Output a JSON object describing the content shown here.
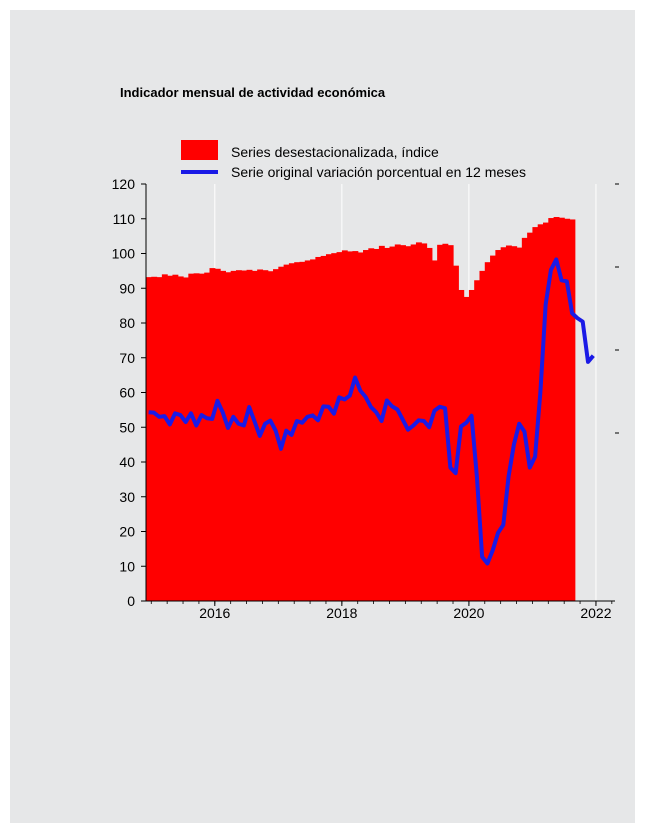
{
  "chart_data": {
    "type": "bar",
    "title": "Indicador mensual de actividad económica",
    "legend": {
      "position": "top",
      "entries": [
        {
          "name": "Series desestacionalizada, índice",
          "color": "#ff0000",
          "kind": "bar"
        },
        {
          "name": "Serie original variación porcentual en 12 meses",
          "color": "#1a1ae6",
          "kind": "line"
        }
      ]
    },
    "x_ticks": [
      "2016",
      "2018",
      "2020",
      "2022"
    ],
    "x_tick_values": [
      2016,
      2018,
      2020,
      2022
    ],
    "xlim": [
      2014.917,
      2022.3
    ],
    "ylim": [
      0,
      120
    ],
    "y_ticks": [
      "0",
      "10",
      "20",
      "30",
      "40",
      "50",
      "60",
      "70",
      "80",
      "90",
      "100",
      "110",
      "120"
    ],
    "y_tick_values": [
      0,
      10,
      20,
      30,
      40,
      50,
      60,
      70,
      80,
      90,
      100,
      110,
      120
    ],
    "grid": true,
    "series": [
      {
        "name": "Series desestacionalizada, índice",
        "kind": "bar",
        "color": "#ff0000",
        "x_start": "2014-12",
        "frequency": "monthly",
        "values": [
          93.2,
          93.3,
          93.2,
          94.0,
          93.6,
          93.9,
          93.4,
          93.1,
          94.2,
          94.3,
          94.2,
          94.5,
          95.8,
          95.6,
          95.0,
          94.6,
          95.0,
          95.2,
          95.1,
          95.3,
          95.0,
          95.4,
          95.2,
          94.9,
          95.5,
          96.2,
          96.8,
          97.2,
          97.5,
          97.6,
          98.0,
          98.3,
          99.0,
          99.3,
          99.8,
          100.1,
          100.4,
          100.9,
          100.6,
          100.7,
          100.3,
          101.0,
          101.5,
          101.3,
          102.2,
          101.6,
          102.0,
          102.6,
          102.4,
          102.1,
          102.6,
          103.2,
          102.9,
          101.6,
          98.0,
          102.5,
          102.8,
          102.4,
          96.5,
          89.5,
          87.5,
          89.5,
          92.3,
          95.0,
          97.5,
          99.4,
          101.0,
          101.8,
          102.3,
          102.1,
          101.7,
          104.5,
          106.0,
          107.6,
          108.4,
          108.9,
          110.2,
          110.5,
          110.3,
          110.0,
          109.8
        ]
      },
      {
        "name": "Serie original variación porcentual en 12 meses",
        "kind": "line",
        "color": "#1a1ae6",
        "x_start": "2014-12",
        "frequency": "monthly",
        "values": [
          54.3,
          54.2,
          53.0,
          53.2,
          50.8,
          54.0,
          53.5,
          51.5,
          54.0,
          50.5,
          53.5,
          52.6,
          52.4,
          57.6,
          54.3,
          49.8,
          53.0,
          51.0,
          50.5,
          55.8,
          51.7,
          47.5,
          51.0,
          51.9,
          49.0,
          43.8,
          49.0,
          47.8,
          51.8,
          51.3,
          53.0,
          53.4,
          52.0,
          56.0,
          55.9,
          53.9,
          58.6,
          58.0,
          59.1,
          64.3,
          60.5,
          58.7,
          55.8,
          54.3,
          51.8,
          57.7,
          56.0,
          55.1,
          52.2,
          49.3,
          50.5,
          52.0,
          51.8,
          50.0,
          54.8,
          55.9,
          55.5,
          38.4,
          36.8,
          50.2,
          51.3,
          53.3,
          36.0,
          12.7,
          10.8,
          14.6,
          19.6,
          21.9,
          35.9,
          45.0,
          51.0,
          48.7,
          38.4,
          41.5,
          60.0,
          85.3,
          95.3,
          98.3,
          92.3,
          92.0,
          82.8,
          81.4,
          80.4,
          68.8,
          70.6
        ]
      }
    ],
    "colors": {
      "panel_background": "#e6e7e8",
      "gridline": "#ffffff"
    }
  }
}
